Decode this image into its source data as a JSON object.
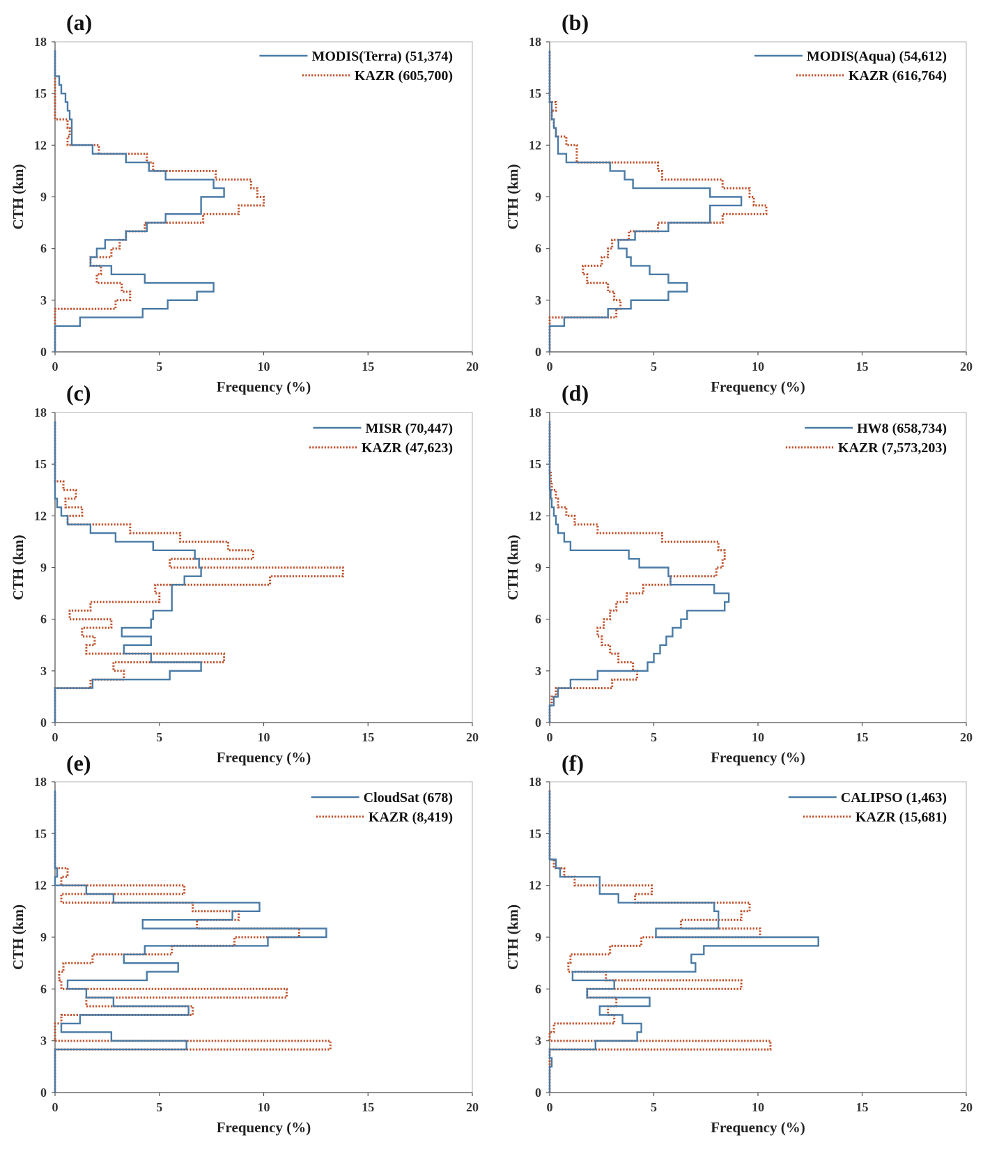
{
  "figure": {
    "colors": {
      "satellite": "#4a7ba6",
      "kazr": "#c0502a"
    },
    "x_axis_label": "Frequency (%)",
    "y_axis_label": "CTH (km)",
    "x_ticks": [
      0,
      5,
      10,
      15,
      20
    ],
    "y_ticks": [
      0,
      3,
      6,
      9,
      12,
      15,
      18
    ]
  },
  "chart_data": [
    {
      "panel": "(a)",
      "type": "line",
      "xlabel": "Frequency (%)",
      "ylabel": "CTH (km)",
      "xlim": [
        0,
        20
      ],
      "ylim": [
        0,
        18
      ],
      "bin_width_km": 0.5,
      "series": [
        {
          "name": "MODIS(Terra) (51,374)",
          "style": "solid",
          "heights": [
            0.5,
            1,
            1.5,
            2,
            2.5,
            3,
            3.5,
            4,
            4.5,
            5,
            5.5,
            6,
            6.5,
            7,
            7.5,
            8,
            8.5,
            9,
            9.5,
            10,
            10.5,
            11,
            11.5,
            12,
            12.5,
            13,
            13.5,
            14,
            14.5,
            15,
            15.5,
            16,
            16.5,
            17,
            17.5
          ],
          "values": [
            0,
            0,
            0,
            1.2,
            4.2,
            5.4,
            6.8,
            7.6,
            4.3,
            2.7,
            1.7,
            2,
            2.4,
            3.4,
            4.4,
            5.3,
            7,
            7,
            8.1,
            7.6,
            5.3,
            4.5,
            3.4,
            1.8,
            0.8,
            0.8,
            0.8,
            0.7,
            0.6,
            0.5,
            0.3,
            0.2,
            0,
            0,
            0
          ]
        },
        {
          "name": "KAZR (605,700)",
          "style": "dotted",
          "heights": [
            0.5,
            1,
            1.5,
            2,
            2.5,
            3,
            3.5,
            4,
            4.5,
            5,
            5.5,
            6,
            6.5,
            7,
            7.5,
            8,
            8.5,
            9,
            9.5,
            10,
            10.5,
            11,
            11.5,
            12,
            12.5,
            13,
            13.5,
            14,
            14.5,
            15,
            15.5,
            16,
            16.5,
            17,
            17.5
          ],
          "values": [
            0,
            0,
            0,
            0,
            0,
            2.9,
            3.6,
            3.2,
            2,
            2.2,
            1.7,
            2.7,
            3.1,
            3.4,
            4.3,
            7.1,
            8.8,
            10,
            9.7,
            9.4,
            7.7,
            4.7,
            4.4,
            2.1,
            0.6,
            0.7,
            0.6,
            0,
            0,
            0,
            0,
            0,
            0,
            0,
            0
          ]
        }
      ]
    },
    {
      "panel": "(b)",
      "type": "line",
      "xlabel": "Frequency (%)",
      "ylabel": "CTH (km)",
      "xlim": [
        0,
        20
      ],
      "ylim": [
        0,
        18
      ],
      "bin_width_km": 0.5,
      "series": [
        {
          "name": "MODIS(Aqua) (54,612)",
          "style": "solid",
          "heights": [
            0.5,
            1,
            1.5,
            2,
            2.5,
            3,
            3.5,
            4,
            4.5,
            5,
            5.5,
            6,
            6.5,
            7,
            7.5,
            8,
            8.5,
            9,
            9.5,
            10,
            10.5,
            11,
            11.5,
            12,
            12.5,
            13,
            13.5,
            14,
            14.5,
            15,
            15.5,
            16,
            16.5,
            17,
            17.5
          ],
          "values": [
            0,
            0,
            0,
            0.7,
            2.8,
            3.9,
            5.7,
            6.6,
            5.7,
            4.8,
            3.9,
            3.7,
            3.3,
            4.1,
            5.7,
            7.7,
            7.7,
            9.2,
            7.7,
            4.0,
            3.6,
            2.9,
            0.8,
            0.4,
            0.4,
            0.3,
            0.2,
            0.1,
            0.1,
            0,
            0,
            0,
            0,
            0,
            0
          ]
        },
        {
          "name": "KAZR (616,764)",
          "style": "dotted",
          "heights": [
            0.5,
            1,
            1.5,
            2,
            2.5,
            3,
            3.5,
            4,
            4.5,
            5,
            5.5,
            6,
            6.5,
            7,
            7.5,
            8,
            8.5,
            9,
            9.5,
            10,
            10.5,
            11,
            11.5,
            12,
            12.5,
            13,
            13.5,
            14,
            14.5,
            15,
            15.5,
            16,
            16.5,
            17,
            17.5
          ],
          "values": [
            0,
            0,
            0,
            0,
            3.2,
            3.4,
            3.1,
            2.8,
            1.8,
            1.6,
            2.5,
            2.8,
            3,
            3.8,
            5.2,
            8.3,
            10.4,
            9.8,
            9.6,
            8.3,
            5.4,
            5.2,
            1.3,
            1.3,
            0.8,
            0.3,
            0.2,
            0.1,
            0.3,
            0,
            0,
            0,
            0,
            0,
            0
          ]
        }
      ]
    },
    {
      "panel": "(c)",
      "type": "line",
      "xlabel": "Frequency (%)",
      "ylabel": "CTH (km)",
      "xlim": [
        0,
        20
      ],
      "ylim": [
        0,
        18
      ],
      "bin_width_km": 0.5,
      "series": [
        {
          "name": "MISR (70,447)",
          "style": "solid",
          "heights": [
            0.5,
            1,
            1.5,
            2,
            2.5,
            3,
            3.5,
            4,
            4.5,
            5,
            5.5,
            6,
            6.5,
            7,
            7.5,
            8,
            8.5,
            9,
            9.5,
            10,
            10.5,
            11,
            11.5,
            12,
            12.5,
            13,
            13.5,
            14,
            14.5,
            15,
            15.5,
            16,
            16.5,
            17,
            17.5
          ],
          "values": [
            0,
            0,
            0,
            0,
            1.8,
            5.5,
            7,
            4.6,
            3.3,
            4.6,
            3.2,
            4.6,
            4.7,
            5.6,
            5.6,
            5.6,
            6.2,
            7,
            6.9,
            6.7,
            4.7,
            2.9,
            1.7,
            0.6,
            0.3,
            0.1,
            0,
            0,
            0,
            0,
            0,
            0,
            0,
            0,
            0
          ]
        },
        {
          "name": "KAZR (47,623)",
          "style": "dotted",
          "heights": [
            0.5,
            1,
            1.5,
            2,
            2.5,
            3,
            3.5,
            4,
            4.5,
            5,
            5.5,
            6,
            6.5,
            7,
            7.5,
            8,
            8.5,
            9,
            9.5,
            10,
            10.5,
            11,
            11.5,
            12,
            12.5,
            13,
            13.5,
            14,
            14.5,
            15,
            15.5,
            16,
            16.5,
            17,
            17.5
          ],
          "values": [
            0,
            0,
            0,
            0,
            1.7,
            3.3,
            2.8,
            8.1,
            1.5,
            1.9,
            1.3,
            2.7,
            0.7,
            1.7,
            5,
            4.8,
            10.3,
            13.8,
            5.5,
            9.5,
            8.3,
            6,
            3.6,
            0.6,
            1.3,
            0.5,
            1,
            0.4,
            0,
            0,
            0,
            0,
            0,
            0,
            0
          ]
        }
      ]
    },
    {
      "panel": "(d)",
      "type": "line",
      "xlabel": "Frequency (%)",
      "ylabel": "CTH (km)",
      "xlim": [
        0,
        20
      ],
      "ylim": [
        0,
        18
      ],
      "bin_width_km": 0.5,
      "series": [
        {
          "name": "HW8 (658,734)",
          "style": "solid",
          "heights": [
            0.5,
            1,
            1.5,
            2,
            2.5,
            3,
            3.5,
            4,
            4.5,
            5,
            5.5,
            6,
            6.5,
            7,
            7.5,
            8,
            8.5,
            9,
            9.5,
            10,
            10.5,
            11,
            11.5,
            12,
            12.5,
            13,
            13.5,
            14,
            14.5,
            15,
            15.5,
            16,
            16.5,
            17,
            17.5
          ],
          "values": [
            0,
            0,
            0.2,
            0.4,
            1.0,
            2.3,
            4.7,
            5.0,
            5.3,
            5.6,
            5.9,
            6.3,
            6.6,
            8.4,
            8.6,
            7.9,
            5.8,
            5.7,
            4.3,
            3.8,
            1.0,
            0.7,
            0.4,
            0.3,
            0.2,
            0.1,
            0.05,
            0,
            0,
            0,
            0,
            0,
            0,
            0,
            0
          ]
        },
        {
          "name": "KAZR (7,573,203)",
          "style": "dotted",
          "heights": [
            0.5,
            1,
            1.5,
            2,
            2.5,
            3,
            3.5,
            4,
            4.5,
            5,
            5.5,
            6,
            6.5,
            7,
            7.5,
            8,
            8.5,
            9,
            9.5,
            10,
            10.5,
            11,
            11.5,
            12,
            12.5,
            13,
            13.5,
            14,
            14.5,
            15,
            15.5,
            16,
            16.5,
            17,
            17.5
          ],
          "values": [
            0,
            0,
            0.1,
            0.3,
            3.0,
            4.2,
            4.0,
            3.3,
            2.9,
            2.5,
            2.3,
            2.6,
            2.9,
            3.2,
            3.7,
            4.5,
            5.8,
            8.0,
            8.3,
            8.4,
            8.1,
            5.4,
            2.3,
            1.2,
            0.8,
            0.4,
            0.3,
            0.1,
            0.05,
            0,
            0,
            0,
            0,
            0,
            0
          ]
        }
      ]
    },
    {
      "panel": "(e)",
      "type": "line",
      "xlabel": "Frequency (%)",
      "ylabel": "CTH (km)",
      "xlim": [
        0,
        20
      ],
      "ylim": [
        0,
        18
      ],
      "bin_width_km": 0.5,
      "series": [
        {
          "name": "CloudSat (678)",
          "style": "solid",
          "heights": [
            0.5,
            1,
            1.5,
            2,
            2.5,
            3,
            3.5,
            4,
            4.5,
            5,
            5.5,
            6,
            6.5,
            7,
            7.5,
            8,
            8.5,
            9,
            9.5,
            10,
            10.5,
            11,
            11.5,
            12,
            12.5,
            13,
            13.5,
            14,
            14.5,
            15,
            15.5,
            16,
            16.5,
            17,
            17.5
          ],
          "values": [
            0,
            0,
            0,
            0,
            0,
            6.3,
            2.7,
            0.3,
            1.2,
            6.4,
            2.8,
            1.5,
            0.6,
            4.4,
            5.9,
            3.3,
            4.3,
            10.2,
            13.0,
            4.2,
            8.5,
            9.8,
            2.8,
            1.5,
            0,
            0.1,
            0,
            0,
            0,
            0,
            0,
            0,
            0,
            0,
            0
          ]
        },
        {
          "name": "KAZR (8,419)",
          "style": "dotted",
          "heights": [
            0.5,
            1,
            1.5,
            2,
            2.5,
            3,
            3.5,
            4,
            4.5,
            5,
            5.5,
            6,
            6.5,
            7,
            7.5,
            8,
            8.5,
            9,
            9.5,
            10,
            10.5,
            11,
            11.5,
            12,
            12.5,
            13,
            13.5,
            14,
            14.5,
            15,
            15.5,
            16,
            16.5,
            17,
            17.5
          ],
          "values": [
            0,
            0,
            0,
            0,
            0,
            13.2,
            0,
            0,
            0.3,
            6.6,
            1.5,
            11.1,
            0.3,
            0.2,
            0.4,
            1.8,
            5.6,
            8.6,
            11.7,
            6.8,
            8.8,
            6.6,
            0.3,
            6.2,
            0.3,
            0.6,
            0,
            0,
            0,
            0,
            0,
            0,
            0,
            0,
            0
          ]
        }
      ]
    },
    {
      "panel": "(f)",
      "type": "line",
      "xlabel": "Frequency (%)",
      "ylabel": "CTH (km)",
      "xlim": [
        0,
        20
      ],
      "ylim": [
        0,
        18
      ],
      "bin_width_km": 0.5,
      "series": [
        {
          "name": "CALIPSO (1,463)",
          "style": "solid",
          "heights": [
            0.5,
            1,
            1.5,
            2,
            2.5,
            3,
            3.5,
            4,
            4.5,
            5,
            5.5,
            6,
            6.5,
            7,
            7.5,
            8,
            8.5,
            9,
            9.5,
            10,
            10.5,
            11,
            11.5,
            12,
            12.5,
            13,
            13.5,
            14,
            14.5,
            15,
            15.5,
            16,
            16.5,
            17,
            17.5
          ],
          "values": [
            0,
            0,
            0,
            0.1,
            0,
            2.2,
            4.2,
            4.4,
            3.5,
            2.4,
            4.8,
            1.8,
            3.1,
            1.1,
            7,
            6.8,
            7.4,
            12.9,
            5.1,
            8.1,
            8.1,
            7.9,
            3.3,
            2.4,
            2.4,
            0.5,
            0.3,
            0,
            0,
            0,
            0,
            0,
            0,
            0,
            0
          ]
        },
        {
          "name": "KAZR (15,681)",
          "style": "dotted",
          "heights": [
            0.5,
            1,
            1.5,
            2,
            2.5,
            3,
            3.5,
            4,
            4.5,
            5,
            5.5,
            6,
            6.5,
            7,
            7.5,
            8,
            8.5,
            9,
            9.5,
            10,
            10.5,
            11,
            11.5,
            12,
            12.5,
            13,
            13.5,
            14,
            14.5,
            15,
            15.5,
            16,
            16.5,
            17,
            17.5
          ],
          "values": [
            0,
            0,
            0,
            0,
            0,
            10.6,
            0,
            0.2,
            3.1,
            2.8,
            3.2,
            1.8,
            9.2,
            2.7,
            0.9,
            1.0,
            2.9,
            4.4,
            10.1,
            6.3,
            9.2,
            9.6,
            4.1,
            4.9,
            1.2,
            0.7,
            0.2,
            0,
            0,
            0,
            0,
            0,
            0,
            0,
            0
          ]
        }
      ]
    }
  ]
}
